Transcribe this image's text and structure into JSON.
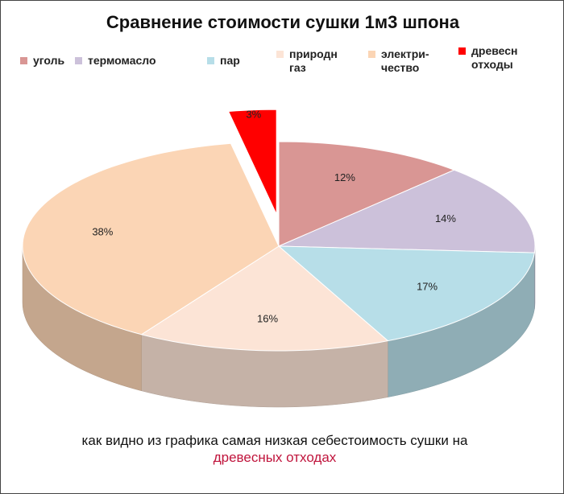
{
  "chart_data": {
    "type": "pie",
    "title": "Сравнение стоимости сушки 1м3 шпона",
    "categories": [
      "уголь",
      "термомасло",
      "пар",
      "природн\nгаз",
      "электри-\nчество",
      "древесн\nотходы"
    ],
    "values": [
      12,
      14,
      17,
      16,
      38,
      3
    ],
    "value_labels": [
      "12%",
      "14%",
      "17%",
      "16%",
      "38%",
      "3%"
    ],
    "colors": [
      "#d99694",
      "#ccc1da",
      "#b7dee8",
      "#fce4d6",
      "#fbd5b5",
      "#ff0000"
    ],
    "annotation": {
      "text": "как видно из графика самая низкая себестоимость сушки на",
      "highlight": "древесных отходах"
    }
  }
}
